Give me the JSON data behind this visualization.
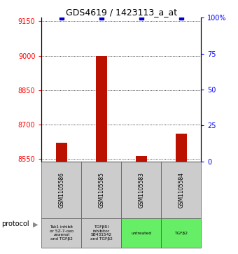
{
  "title": "GDS4619 / 1423113_a_at",
  "samples": [
    "GSM1105586",
    "GSM1105585",
    "GSM1105583",
    "GSM1105584"
  ],
  "protocols": [
    "Tak1 inhibit\nor 5Z-7-oxo\nzeaenol\nand TGFβ2",
    "TGFβRI\ninhibitor\nSB431542\nand TGFβ2",
    "untreated",
    "TGFβ2"
  ],
  "protocol_colors": [
    "#cccccc",
    "#cccccc",
    "#66ee66",
    "#66ee66"
  ],
  "counts": [
    8622,
    9000,
    8562,
    8660
  ],
  "percentiles": [
    100,
    100,
    100,
    100
  ],
  "ylim_left": [
    8540,
    9165
  ],
  "ylim_right": [
    0,
    100
  ],
  "yticks_left": [
    8550,
    8700,
    8850,
    9000,
    9150
  ],
  "yticks_right": [
    0,
    25,
    50,
    75,
    100
  ],
  "bar_color": "#bb1100",
  "dot_color": "#0000cc",
  "bar_bottom": 8540,
  "legend_count_color": "#bb1100",
  "legend_percentile_color": "#0000cc"
}
